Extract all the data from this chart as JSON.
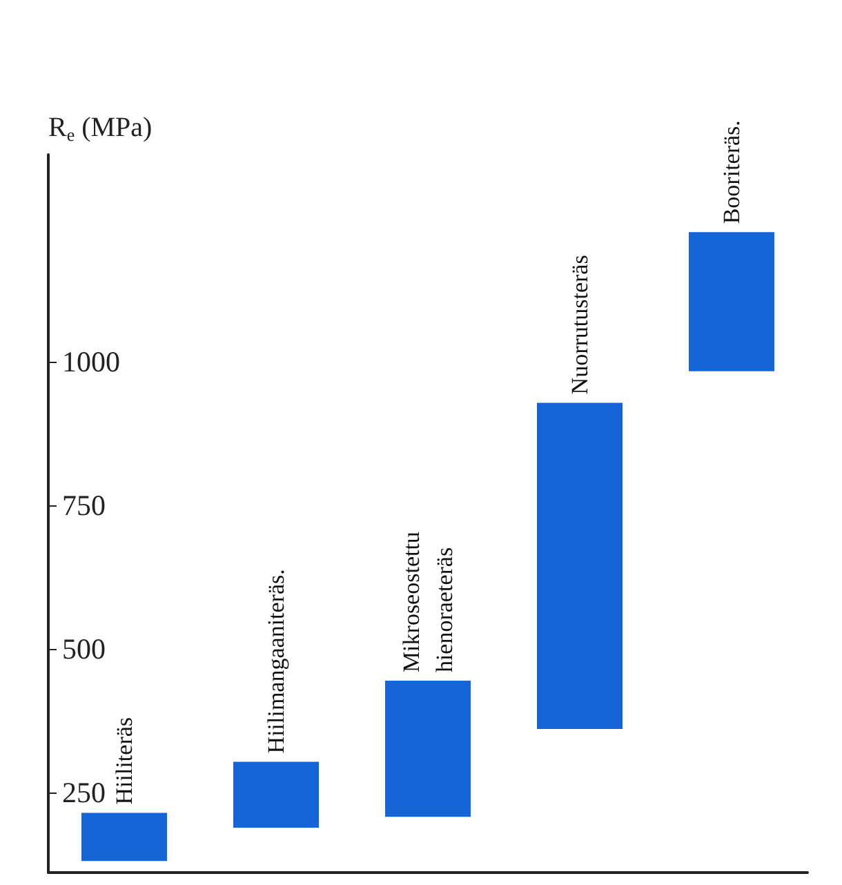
{
  "chart_data": {
    "type": "bar",
    "ylabel": "R$_{e}$ (MPa)",
    "categories": [
      "Hiiliteräs",
      "Hiilimangaaniteräs.",
      "Mikroseostettu\nhienoraeteräs",
      "Nuorrutusteräs",
      "Booriteräs."
    ],
    "base": [
      130,
      188,
      207,
      360,
      983
    ],
    "values": [
      84,
      115,
      237,
      568,
      242
    ],
    "color": "#1565d8",
    "ylim": [
      110,
      1360
    ],
    "yticks": [
      250,
      500,
      750,
      1000
    ],
    "grid": false,
    "tick_labels": "y"
  }
}
